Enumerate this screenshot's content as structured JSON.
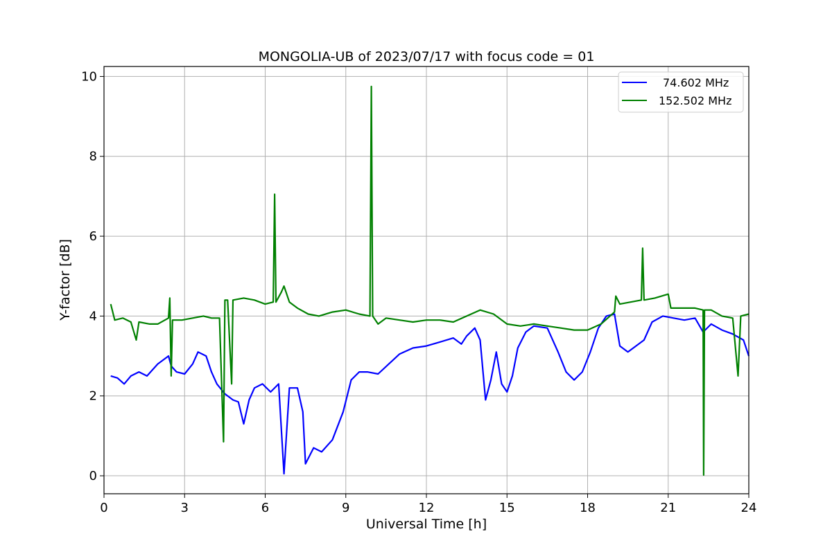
{
  "chart_data": {
    "type": "line",
    "title": "MONGOLIA-UB of 2023/07/17 with focus code = 01",
    "xlabel": "Universal Time [h]",
    "ylabel": "Y-factor [dB]",
    "xlim": [
      0,
      24
    ],
    "ylim": [
      -0.45,
      10.25
    ],
    "xticks": [
      0,
      3,
      6,
      9,
      12,
      15,
      18,
      21,
      24
    ],
    "yticks": [
      0,
      2,
      4,
      6,
      8,
      10
    ],
    "grid": true,
    "legend_position": "top-right",
    "series": [
      {
        "name": "74.602 MHz",
        "color": "#0000ff",
        "points": [
          [
            0.25,
            2.5
          ],
          [
            0.5,
            2.45
          ],
          [
            0.75,
            2.3
          ],
          [
            1.0,
            2.5
          ],
          [
            1.3,
            2.6
          ],
          [
            1.6,
            2.5
          ],
          [
            2.0,
            2.8
          ],
          [
            2.4,
            3.0
          ],
          [
            2.5,
            2.75
          ],
          [
            2.7,
            2.6
          ],
          [
            3.0,
            2.55
          ],
          [
            3.3,
            2.8
          ],
          [
            3.5,
            3.1
          ],
          [
            3.8,
            3.0
          ],
          [
            4.0,
            2.6
          ],
          [
            4.2,
            2.3
          ],
          [
            4.5,
            2.05
          ],
          [
            4.8,
            1.9
          ],
          [
            5.0,
            1.85
          ],
          [
            5.2,
            1.3
          ],
          [
            5.4,
            1.9
          ],
          [
            5.6,
            2.2
          ],
          [
            5.9,
            2.3
          ],
          [
            6.2,
            2.1
          ],
          [
            6.5,
            2.3
          ],
          [
            6.7,
            0.05
          ],
          [
            6.9,
            2.2
          ],
          [
            7.2,
            2.2
          ],
          [
            7.4,
            1.6
          ],
          [
            7.5,
            0.3
          ],
          [
            7.8,
            0.7
          ],
          [
            8.1,
            0.6
          ],
          [
            8.5,
            0.9
          ],
          [
            8.9,
            1.6
          ],
          [
            9.2,
            2.4
          ],
          [
            9.5,
            2.6
          ],
          [
            9.8,
            2.6
          ],
          [
            10.2,
            2.55
          ],
          [
            10.6,
            2.8
          ],
          [
            11.0,
            3.05
          ],
          [
            11.5,
            3.2
          ],
          [
            12.0,
            3.25
          ],
          [
            12.5,
            3.35
          ],
          [
            13.0,
            3.45
          ],
          [
            13.3,
            3.3
          ],
          [
            13.5,
            3.5
          ],
          [
            13.8,
            3.7
          ],
          [
            14.0,
            3.4
          ],
          [
            14.2,
            1.9
          ],
          [
            14.4,
            2.4
          ],
          [
            14.6,
            3.1
          ],
          [
            14.8,
            2.3
          ],
          [
            15.0,
            2.1
          ],
          [
            15.2,
            2.5
          ],
          [
            15.4,
            3.2
          ],
          [
            15.7,
            3.6
          ],
          [
            16.0,
            3.75
          ],
          [
            16.5,
            3.7
          ],
          [
            16.9,
            3.1
          ],
          [
            17.2,
            2.6
          ],
          [
            17.5,
            2.4
          ],
          [
            17.8,
            2.6
          ],
          [
            18.1,
            3.1
          ],
          [
            18.4,
            3.7
          ],
          [
            18.7,
            4.0
          ],
          [
            19.0,
            4.05
          ],
          [
            19.2,
            3.25
          ],
          [
            19.5,
            3.1
          ],
          [
            19.8,
            3.25
          ],
          [
            20.1,
            3.4
          ],
          [
            20.4,
            3.85
          ],
          [
            20.8,
            4.0
          ],
          [
            21.2,
            3.95
          ],
          [
            21.6,
            3.9
          ],
          [
            22.0,
            3.95
          ],
          [
            22.3,
            3.6
          ],
          [
            22.6,
            3.8
          ],
          [
            23.0,
            3.65
          ],
          [
            23.4,
            3.55
          ],
          [
            23.8,
            3.4
          ],
          [
            24.0,
            3.0
          ]
        ]
      },
      {
        "name": "152.502 MHz",
        "color": "#008000",
        "points": [
          [
            0.25,
            4.3
          ],
          [
            0.4,
            3.9
          ],
          [
            0.7,
            3.95
          ],
          [
            1.0,
            3.85
          ],
          [
            1.2,
            3.4
          ],
          [
            1.3,
            3.85
          ],
          [
            1.7,
            3.8
          ],
          [
            2.0,
            3.8
          ],
          [
            2.4,
            3.95
          ],
          [
            2.45,
            4.45
          ],
          [
            2.5,
            2.5
          ],
          [
            2.55,
            3.9
          ],
          [
            2.9,
            3.9
          ],
          [
            3.3,
            3.95
          ],
          [
            3.7,
            4.0
          ],
          [
            4.0,
            3.95
          ],
          [
            4.3,
            3.95
          ],
          [
            4.45,
            0.85
          ],
          [
            4.5,
            4.4
          ],
          [
            4.6,
            4.4
          ],
          [
            4.75,
            2.3
          ],
          [
            4.8,
            4.4
          ],
          [
            5.2,
            4.45
          ],
          [
            5.6,
            4.4
          ],
          [
            6.0,
            4.3
          ],
          [
            6.3,
            4.35
          ],
          [
            6.35,
            7.05
          ],
          [
            6.4,
            4.35
          ],
          [
            6.6,
            4.6
          ],
          [
            6.7,
            4.75
          ],
          [
            6.9,
            4.35
          ],
          [
            7.2,
            4.2
          ],
          [
            7.6,
            4.05
          ],
          [
            8.0,
            4.0
          ],
          [
            8.5,
            4.1
          ],
          [
            9.0,
            4.15
          ],
          [
            9.5,
            4.05
          ],
          [
            9.9,
            4.0
          ],
          [
            9.95,
            9.75
          ],
          [
            10.0,
            4.0
          ],
          [
            10.2,
            3.8
          ],
          [
            10.5,
            3.95
          ],
          [
            11.0,
            3.9
          ],
          [
            11.5,
            3.85
          ],
          [
            12.0,
            3.9
          ],
          [
            12.5,
            3.9
          ],
          [
            13.0,
            3.85
          ],
          [
            13.5,
            4.0
          ],
          [
            14.0,
            4.15
          ],
          [
            14.5,
            4.05
          ],
          [
            15.0,
            3.8
          ],
          [
            15.5,
            3.75
          ],
          [
            16.0,
            3.8
          ],
          [
            16.5,
            3.75
          ],
          [
            17.0,
            3.7
          ],
          [
            17.5,
            3.65
          ],
          [
            18.0,
            3.65
          ],
          [
            18.5,
            3.8
          ],
          [
            19.0,
            4.1
          ],
          [
            19.05,
            4.5
          ],
          [
            19.2,
            4.3
          ],
          [
            19.6,
            4.35
          ],
          [
            20.0,
            4.4
          ],
          [
            20.05,
            5.7
          ],
          [
            20.1,
            4.4
          ],
          [
            20.5,
            4.45
          ],
          [
            21.0,
            4.55
          ],
          [
            21.1,
            4.2
          ],
          [
            21.6,
            4.2
          ],
          [
            22.0,
            4.2
          ],
          [
            22.3,
            4.15
          ],
          [
            22.32,
            0.02
          ],
          [
            22.35,
            4.15
          ],
          [
            22.6,
            4.15
          ],
          [
            23.0,
            4.0
          ],
          [
            23.4,
            3.95
          ],
          [
            23.6,
            2.5
          ],
          [
            23.7,
            4.0
          ],
          [
            24.0,
            4.05
          ]
        ]
      }
    ]
  }
}
